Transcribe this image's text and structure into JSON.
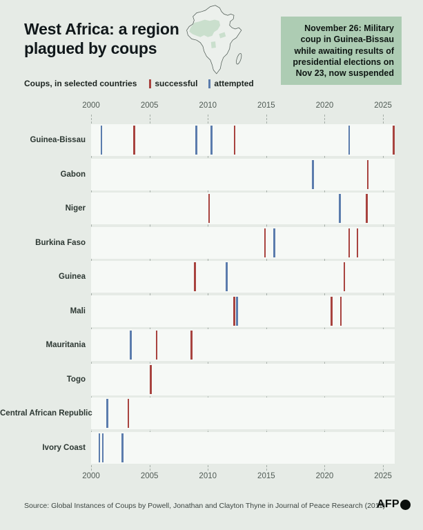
{
  "header": {
    "title_line1": "West Africa: a region",
    "title_line2": "plagued by coups",
    "callout": "November 26: Military coup in Guinea-Bissau while awaiting results of presidential elections on Nov 23, now suspended"
  },
  "legend": {
    "label": "Coups, in selected countries",
    "successful_label": "successful",
    "attempted_label": "attempted"
  },
  "colors": {
    "background": "#e6ebe6",
    "band": "#f6f9f6",
    "callout_bg": "#adccb3",
    "successful": "#a8433f",
    "attempted": "#5b7cad",
    "map_highlight": "#b9d4bd",
    "map_outline": "#4a5650",
    "grid": "#a3aca6"
  },
  "chart_data": {
    "type": "scatter",
    "subtype": "event-timeline-ticks",
    "title": "Coups, in selected countries",
    "xlabel": "year",
    "x_axis": {
      "range": [
        2000,
        2026
      ],
      "ticks": [
        2000,
        2005,
        2010,
        2015,
        2020,
        2025
      ],
      "grid": true
    },
    "legend": {
      "successful": "red tick",
      "attempted": "blue tick",
      "position": "top"
    },
    "series": [
      {
        "country": "Guinea-Bissau",
        "events": [
          {
            "year": 2000.9,
            "status": "attempted"
          },
          {
            "year": 2003.7,
            "status": "successful"
          },
          {
            "year": 2009.0,
            "status": "attempted"
          },
          {
            "year": 2010.3,
            "status": "attempted"
          },
          {
            "year": 2012.3,
            "status": "successful"
          },
          {
            "year": 2022.1,
            "status": "attempted"
          },
          {
            "year": 2025.9,
            "status": "successful"
          }
        ]
      },
      {
        "country": "Gabon",
        "events": [
          {
            "year": 2019.0,
            "status": "attempted"
          },
          {
            "year": 2023.7,
            "status": "successful"
          }
        ]
      },
      {
        "country": "Niger",
        "events": [
          {
            "year": 2010.1,
            "status": "successful"
          },
          {
            "year": 2021.3,
            "status": "attempted"
          },
          {
            "year": 2023.6,
            "status": "successful"
          }
        ]
      },
      {
        "country": "Burkina Faso",
        "events": [
          {
            "year": 2014.9,
            "status": "successful"
          },
          {
            "year": 2015.7,
            "status": "attempted"
          },
          {
            "year": 2022.1,
            "status": "successful"
          },
          {
            "year": 2022.8,
            "status": "successful"
          }
        ]
      },
      {
        "country": "Guinea",
        "events": [
          {
            "year": 2008.9,
            "status": "successful"
          },
          {
            "year": 2011.6,
            "status": "attempted"
          },
          {
            "year": 2021.7,
            "status": "successful"
          }
        ]
      },
      {
        "country": "Mali",
        "events": [
          {
            "year": 2012.25,
            "status": "successful"
          },
          {
            "year": 2012.5,
            "status": "attempted"
          },
          {
            "year": 2020.6,
            "status": "successful"
          },
          {
            "year": 2021.4,
            "status": "successful"
          }
        ]
      },
      {
        "country": "Mauritania",
        "events": [
          {
            "year": 2003.4,
            "status": "attempted"
          },
          {
            "year": 2005.6,
            "status": "successful"
          },
          {
            "year": 2008.6,
            "status": "successful"
          }
        ]
      },
      {
        "country": "Togo",
        "events": [
          {
            "year": 2005.1,
            "status": "successful"
          }
        ]
      },
      {
        "country": "Central African Republic",
        "events": [
          {
            "year": 2001.4,
            "status": "attempted"
          },
          {
            "year": 2003.2,
            "status": "successful"
          }
        ]
      },
      {
        "country": "Ivory Coast",
        "events": [
          {
            "year": 2000.7,
            "status": "attempted"
          },
          {
            "year": 2001.0,
            "status": "attempted"
          },
          {
            "year": 2002.7,
            "status": "attempted"
          }
        ]
      }
    ]
  },
  "footer": {
    "source": "Source: Global Instances of Coups by Powell, Jonathan and Clayton Thyne in Journal of Peace Research (2011)",
    "logo": "AFP"
  }
}
